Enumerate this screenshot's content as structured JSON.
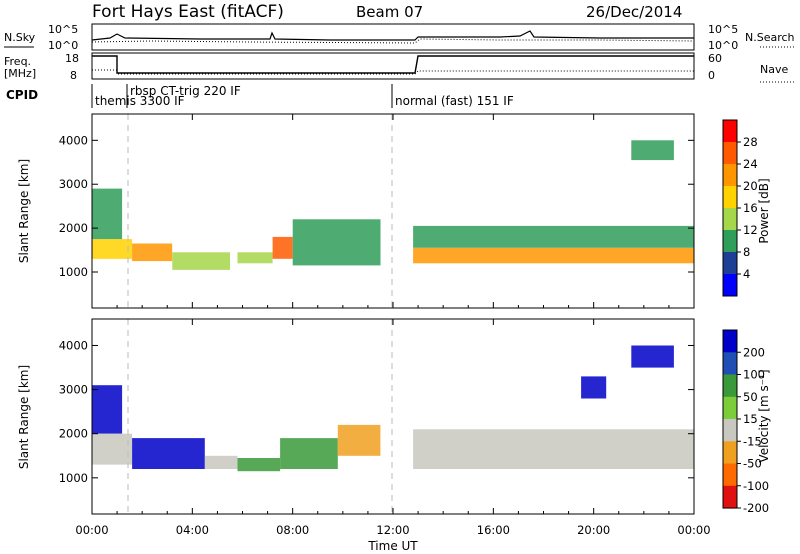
{
  "header": {
    "title": "Fort Hays East (fitACF)",
    "beam": "Beam 07",
    "date": "26/Dec/2014"
  },
  "top_panels": {
    "nsky_label": "N.Sky",
    "nsearch_label": "N.Search",
    "nsky_ticks_left": [
      "10^5",
      "10^0"
    ],
    "nsky_ticks_right": [
      "10^5",
      "10^0"
    ],
    "freq_label": "Freq.",
    "freq_unit": "[MHz]",
    "freq_ticks": [
      "18",
      "8"
    ],
    "nave_label": "Nave",
    "nave_ticks": [
      "60",
      "0"
    ],
    "cpid_label": "CPID",
    "cpid_entries": [
      {
        "label": "themis 3300 IF",
        "start_hour": 0
      },
      {
        "label": "rbsp CT-trig 220 IF",
        "start_hour": 1
      },
      {
        "label": "normal (fast) 151 IF",
        "start_hour": 12
      }
    ]
  },
  "power_colorbar": {
    "title": "Power [dB]",
    "ticks": [
      "28",
      "24",
      "20",
      "16",
      "12",
      "8",
      "4"
    ],
    "colors": [
      "#ff0000",
      "#ff5a00",
      "#ff9600",
      "#ffd200",
      "#a6d64a",
      "#2f9e5a",
      "#1d3f96",
      "#0000ff"
    ]
  },
  "velocity_colorbar": {
    "title": "Velocity [m s⁻¹]",
    "ticks": [
      "200",
      "100",
      "50",
      "15",
      "-15",
      "-50",
      "-100",
      "-200"
    ],
    "colors": [
      "#0000c8",
      "#1f4fb4",
      "#3a9a3a",
      "#7ccd3a",
      "#c8c8c0",
      "#f0a020",
      "#ff6a00",
      "#e01010"
    ]
  },
  "axes": {
    "ylabel": "Slant Range [km]",
    "xlabel": "Time UT",
    "y_ticks": [
      "4000",
      "3000",
      "2000",
      "1000"
    ],
    "x_ticks": [
      "00:00",
      "04:00",
      "08:00",
      "12:00",
      "16:00",
      "20:00",
      "00:00"
    ]
  },
  "chart_data": [
    {
      "type": "heatmap",
      "name": "power",
      "xlabel": "Time UT",
      "ylabel": "Slant Range [km]",
      "xlim": [
        0,
        24
      ],
      "ylim": [
        180,
        4600
      ],
      "x_ticks_hours": [
        0,
        4,
        8,
        12,
        16,
        20,
        24
      ],
      "y_ticks": [
        1000,
        2000,
        3000,
        4000
      ],
      "colorbar": {
        "label": "Power [dB]",
        "ticks": [
          4,
          8,
          12,
          16,
          20,
          24,
          28
        ]
      },
      "regions": [
        {
          "t0": 0.0,
          "t1": 1.6,
          "r0": 1300,
          "r1": 1750,
          "value": 18
        },
        {
          "t0": 0.0,
          "t1": 1.2,
          "r0": 1750,
          "r1": 2900,
          "value": 8
        },
        {
          "t0": 1.6,
          "t1": 3.2,
          "r0": 1250,
          "r1": 1650,
          "value": 22
        },
        {
          "t0": 3.2,
          "t1": 5.5,
          "r0": 1050,
          "r1": 1450,
          "value": 12
        },
        {
          "t0": 5.8,
          "t1": 7.2,
          "r0": 1200,
          "r1": 1450,
          "value": 14
        },
        {
          "t0": 7.2,
          "t1": 8.0,
          "r0": 1300,
          "r1": 1800,
          "value": 24
        },
        {
          "t0": 8.0,
          "t1": 11.5,
          "r0": 1150,
          "r1": 2200,
          "value": 10
        },
        {
          "t0": 12.8,
          "t1": 24.0,
          "r0": 1200,
          "r1": 1550,
          "value": 20
        },
        {
          "t0": 12.8,
          "t1": 24.0,
          "r0": 1550,
          "r1": 2050,
          "value": 8
        },
        {
          "t0": 21.5,
          "t1": 23.2,
          "r0": 3550,
          "r1": 4000,
          "value": 10
        }
      ]
    },
    {
      "type": "heatmap",
      "name": "velocity",
      "xlabel": "Time UT",
      "ylabel": "Slant Range [km]",
      "xlim": [
        0,
        24
      ],
      "ylim": [
        180,
        4600
      ],
      "x_ticks_hours": [
        0,
        4,
        8,
        12,
        16,
        20,
        24
      ],
      "y_ticks": [
        1000,
        2000,
        3000,
        4000
      ],
      "colorbar": {
        "label": "Velocity [m s⁻¹]",
        "ticks": [
          -200,
          -100,
          -50,
          -15,
          15,
          50,
          100,
          200
        ]
      },
      "regions": [
        {
          "t0": 0.0,
          "t1": 1.2,
          "r0": 2000,
          "r1": 3100,
          "value": 200
        },
        {
          "t0": 0.0,
          "t1": 1.6,
          "r0": 1300,
          "r1": 2000,
          "value": 0
        },
        {
          "t0": 1.6,
          "t1": 4.5,
          "r0": 1200,
          "r1": 1900,
          "value": 200
        },
        {
          "t0": 4.5,
          "t1": 5.8,
          "r0": 1200,
          "r1": 1500,
          "value": 0
        },
        {
          "t0": 5.8,
          "t1": 7.5,
          "r0": 1150,
          "r1": 1450,
          "value": 50
        },
        {
          "t0": 7.5,
          "t1": 9.8,
          "r0": 1200,
          "r1": 1900,
          "value": 50
        },
        {
          "t0": 9.8,
          "t1": 11.5,
          "r0": 1500,
          "r1": 2200,
          "value": -50
        },
        {
          "t0": 12.8,
          "t1": 24.0,
          "r0": 1200,
          "r1": 2100,
          "value": 0
        },
        {
          "t0": 21.5,
          "t1": 23.2,
          "r0": 3500,
          "r1": 4000,
          "value": 200
        },
        {
          "t0": 19.5,
          "t1": 20.5,
          "r0": 2800,
          "r1": 3300,
          "value": 200
        }
      ]
    }
  ]
}
